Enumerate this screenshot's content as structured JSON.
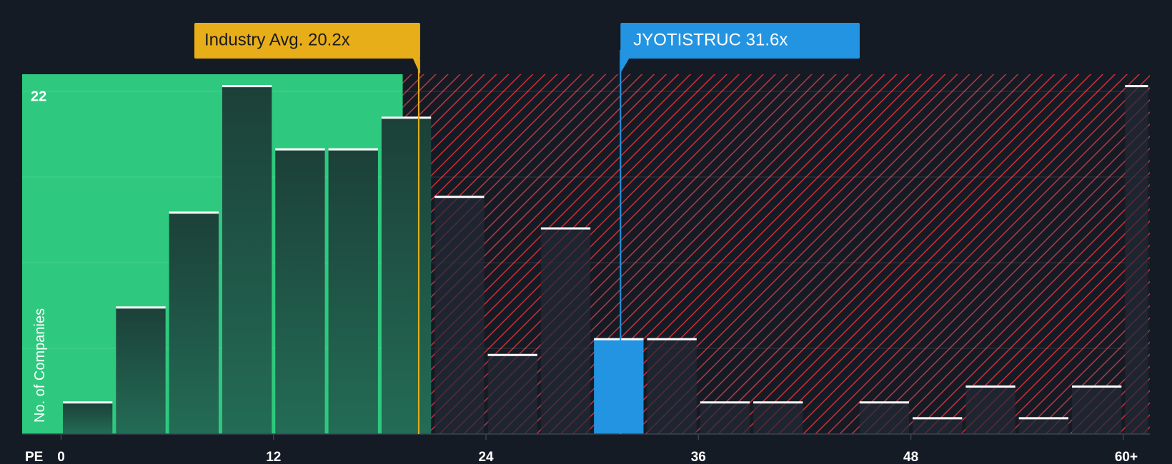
{
  "chart_data": {
    "type": "bar",
    "xlabel": "PE",
    "ylabel": "No. of Companies",
    "x_ticks": [
      "0",
      "12",
      "24",
      "36",
      "48",
      "60+"
    ],
    "y_tick_labels": [
      "22"
    ],
    "bins": [
      {
        "x0": 0,
        "x1": 3,
        "value": 2
      },
      {
        "x0": 3,
        "x1": 6,
        "value": 8
      },
      {
        "x0": 6,
        "x1": 9,
        "value": 14
      },
      {
        "x0": 9,
        "x1": 12,
        "value": 22
      },
      {
        "x0": 12,
        "x1": 15,
        "value": 18
      },
      {
        "x0": 15,
        "x1": 18,
        "value": 18
      },
      {
        "x0": 18,
        "x1": 21,
        "value": 20
      },
      {
        "x0": 21,
        "x1": 24,
        "value": 15
      },
      {
        "x0": 24,
        "x1": 27,
        "value": 5
      },
      {
        "x0": 27,
        "x1": 30,
        "value": 13
      },
      {
        "x0": 30,
        "x1": 33,
        "value": 6,
        "highlight": true
      },
      {
        "x0": 33,
        "x1": 36,
        "value": 6
      },
      {
        "x0": 36,
        "x1": 39,
        "value": 2
      },
      {
        "x0": 39,
        "x1": 42,
        "value": 2
      },
      {
        "x0": 42,
        "x1": 45,
        "value": 0
      },
      {
        "x0": 45,
        "x1": 48,
        "value": 2
      },
      {
        "x0": 48,
        "x1": 51,
        "value": 1
      },
      {
        "x0": 51,
        "x1": 54,
        "value": 3
      },
      {
        "x0": 54,
        "x1": 57,
        "value": 1
      },
      {
        "x0": 57,
        "x1": 60,
        "value": 3
      },
      {
        "x0": 60,
        "x1": 61.5,
        "value": 22
      }
    ],
    "ylim": [
      0,
      22.75
    ],
    "xlim": [
      -2.2,
      61.5
    ],
    "fair_range_end": 19.3,
    "industry_avg": {
      "label": "Industry Avg. 20.2x",
      "value": 20.2
    },
    "company": {
      "label": "JYOTISTRUC 31.6x",
      "value": 31.6
    },
    "colors": {
      "background": "#151b24",
      "fair_zone": "#2ec97e",
      "bar_dark": "#1e4a40",
      "bar_hatched": "#222a36",
      "hatch": "#c5323d",
      "industry": "#e8ae1a",
      "company": "#2394e1",
      "cap": "#ffffff",
      "text": "#ffffff"
    }
  }
}
